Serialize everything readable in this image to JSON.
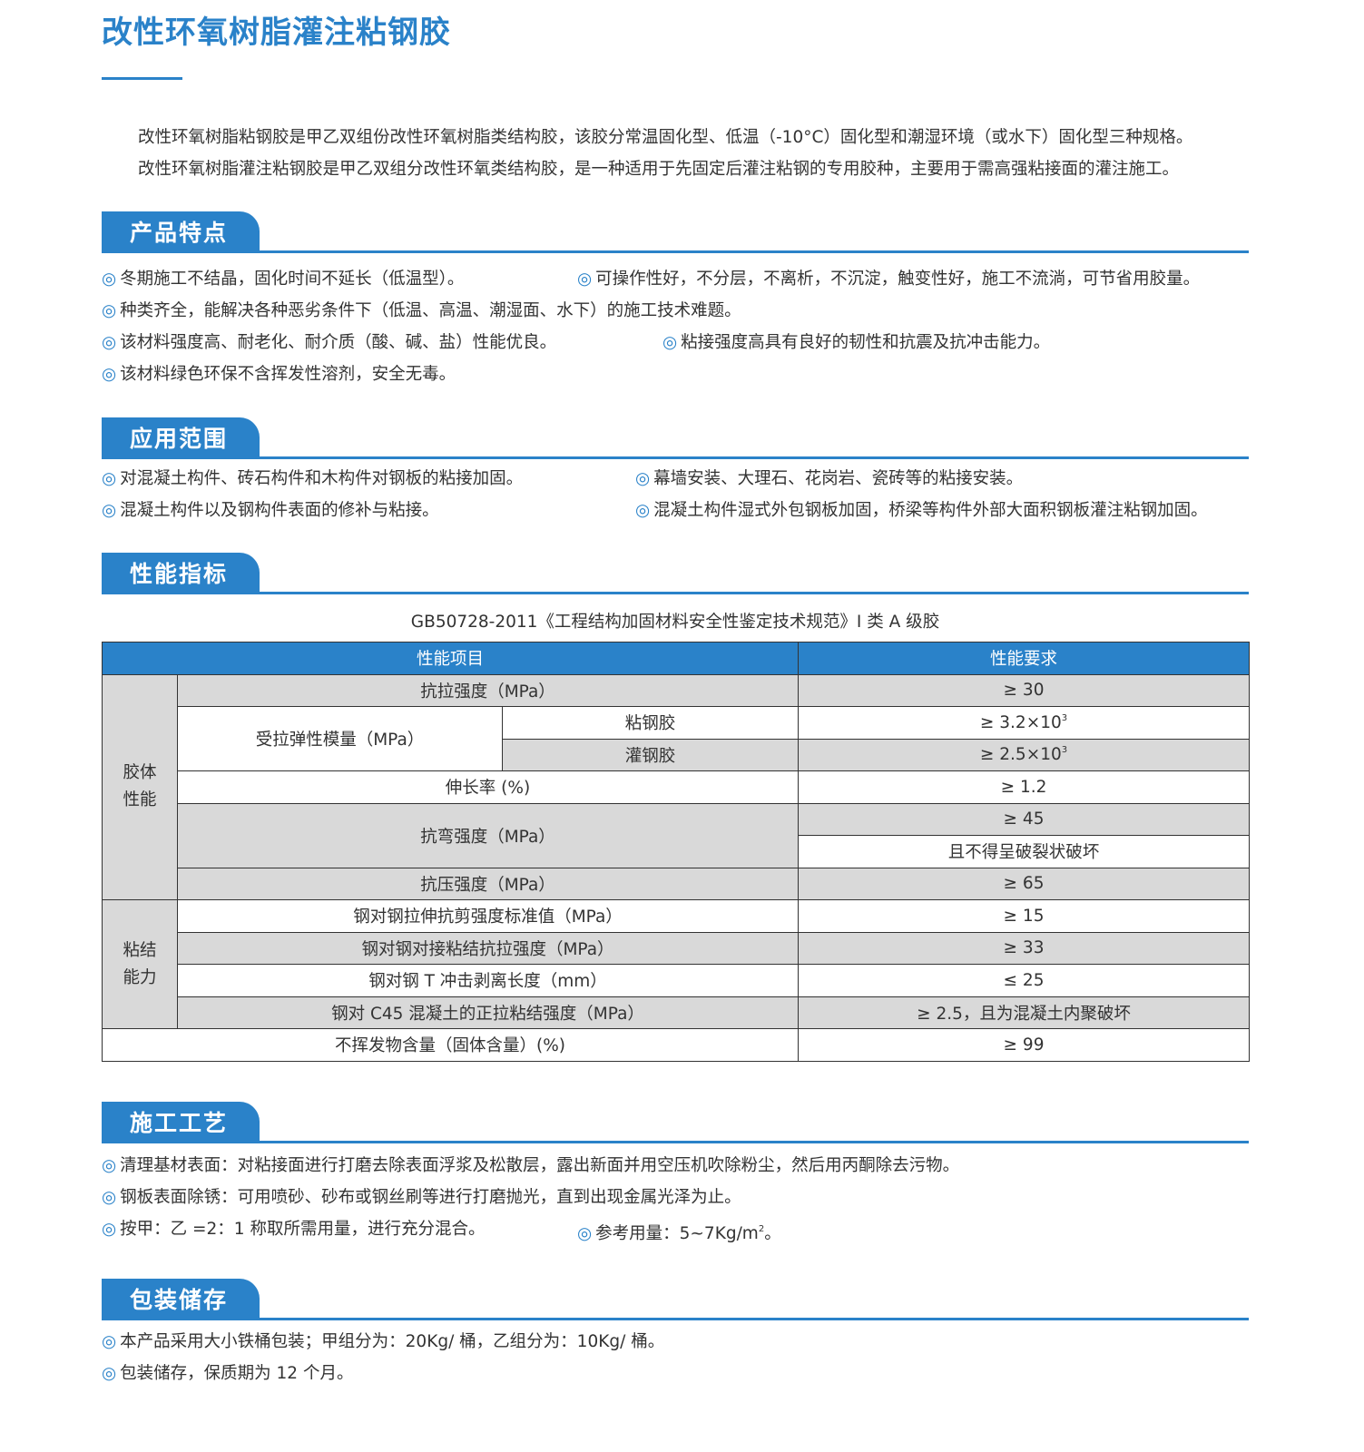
{
  "title": "改性环氧树脂灌注粘钢胶",
  "intro": [
    "改性环氧树脂粘钢胶是甲乙双组份改性环氧树脂类结构胶，该胶分常温固化型、低温（-10°C）固化型和潮湿环境（或水下）固化型三种规格。",
    "改性环氧树脂灌注粘钢胶是甲乙双组分改性环氧类结构胶，是一种适用于先固定后灌注粘钢的专用胶种，主要用于需高强粘接面的灌注施工。"
  ],
  "marker": "◎",
  "accent": "#2a82c9",
  "sections": {
    "features": {
      "title": "产品特点",
      "items": [
        "冬期施工不结晶，固化时间不延长（低温型）。",
        "可操作性好，不分层，不离析，不沉淀，触变性好，施工不流淌，可节省用胶量。",
        "种类齐全，能解决各种恶劣条件下（低温、高温、潮湿面、水下）的施工技术难题。",
        "该材料强度高、耐老化、耐介质（酸、碱、盐）性能优良。",
        "粘接强度高具有良好的韧性和抗震及抗冲击能力。",
        "该材料绿色环保不含挥发性溶剂，安全无毒。"
      ]
    },
    "application": {
      "title": "应用范围",
      "items": [
        "对混凝土构件、砖石构件和木构件对钢板的粘接加固。",
        "幕墙安装、大理石、花岗岩、瓷砖等的粘接安装。",
        "混凝土构件以及钢构件表面的修补与粘接。",
        "混凝土构件湿式外包钢板加固，桥梁等构件外部大面积钢板灌注粘钢加固。"
      ]
    },
    "performance": {
      "title": "性能指标",
      "caption": "GB50728-2011《工程结构加固材料安全性鉴定技术规范》I 类 A 级胶",
      "table": {
        "headers": [
          "性能项目",
          "性能要求"
        ],
        "group1": "胶体\n性能",
        "group2": "粘结\n能力",
        "rows": {
          "tensile": {
            "label": "抗拉强度（MPa）",
            "value": "≥ 30"
          },
          "modulus": {
            "label": "受拉弹性模量（MPa）",
            "sub1": "粘钢胶",
            "value1": "≥ 3.2×10",
            "sup1": "3",
            "sub2": "灌钢胶",
            "value2": "≥ 2.5×10",
            "sup2": "3"
          },
          "elongation": {
            "label": "伸长率 (%)",
            "value": "≥ 1.2"
          },
          "bending": {
            "label": "抗弯强度（MPa）",
            "value1": "≥ 45",
            "value2": "且不得呈破裂状破坏"
          },
          "compressive": {
            "label": "抗压强度（MPa）",
            "value": "≥ 65"
          },
          "shear": {
            "label": "钢对钢拉伸抗剪强度标准值（MPa）",
            "value": "≥ 15"
          },
          "butt": {
            "label": "钢对钢对接粘结抗拉强度（MPa）",
            "value": "≥ 33"
          },
          "peel": {
            "label": "钢对钢 T 冲击剥离长度（mm）",
            "value": "≤ 25"
          },
          "c45": {
            "label": "钢对 C45 混凝土的正拉粘结强度（MPa）",
            "value": "≥ 2.5，且为混凝土内聚破坏"
          },
          "solids": {
            "label": "不挥发物含量（固体含量）(%)",
            "value": "≥ 99"
          }
        }
      }
    },
    "construction": {
      "title": "施工工艺",
      "items": [
        "清理基材表面：对粘接面进行打磨去除表面浮浆及松散层，露出新面并用空压机吹除粉尘，然后用丙酮除去污物。",
        "钢板表面除锈：可用喷砂、砂布或钢丝刷等进行打磨抛光，直到出现金属光泽为止。",
        "按甲：乙 =2：1 称取所需用量，进行充分混合。",
        "参考用量：5~7Kg/m"
      ],
      "item4_sup": "2",
      "item4_end": "。"
    },
    "storage": {
      "title": "包装储存",
      "items": [
        "本产品采用大小铁桶包装；甲组分为：20Kg/ 桶，乙组分为：10Kg/ 桶。",
        "包装储存，保质期为 12 个月。"
      ]
    }
  }
}
